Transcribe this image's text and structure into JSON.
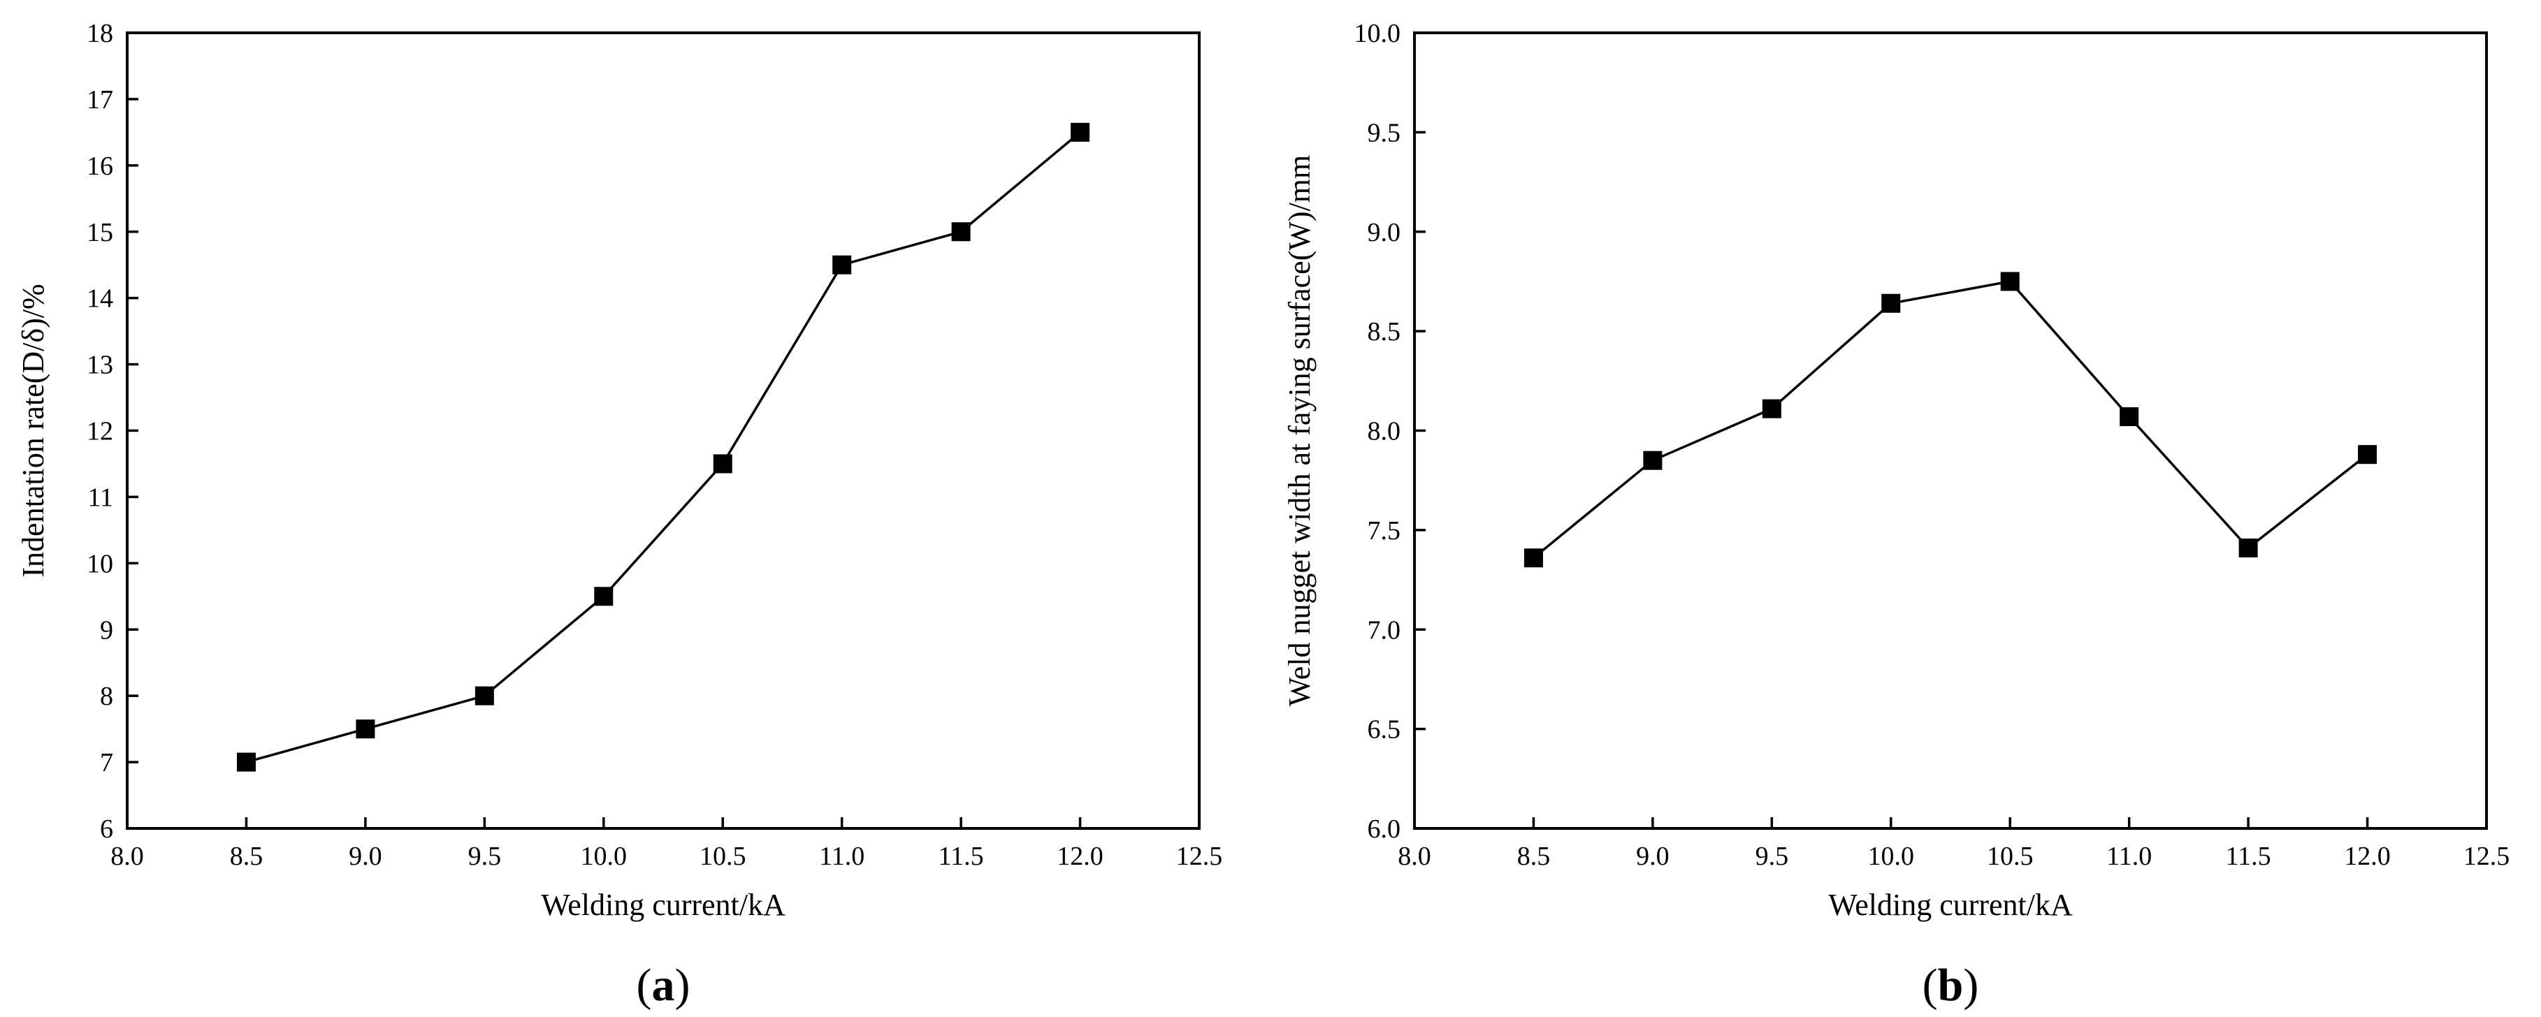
{
  "chart_data": [
    {
      "type": "line",
      "panel_label": "a",
      "xlabel": "Welding current/kA",
      "ylabel": "Indentation rate(D/δ)/%",
      "xlim": [
        8.0,
        12.5
      ],
      "ylim": [
        6,
        18
      ],
      "xticks": [
        "8.0",
        "8.5",
        "9.0",
        "9.5",
        "10.0",
        "10.5",
        "11.0",
        "11.5",
        "12.0",
        "12.5"
      ],
      "yticks": [
        "6",
        "7",
        "8",
        "9",
        "10",
        "11",
        "12",
        "13",
        "14",
        "15",
        "16",
        "17",
        "18"
      ],
      "grid": false,
      "marker": "square",
      "series": [
        {
          "x": [
            8.5,
            9.0,
            9.5,
            10.0,
            10.5,
            11.0,
            11.5,
            12.0
          ],
          "values": [
            7.0,
            7.5,
            8.0,
            9.5,
            11.5,
            14.5,
            15.0,
            16.5
          ]
        }
      ]
    },
    {
      "type": "line",
      "panel_label": "b",
      "xlabel": "Welding current/kA",
      "ylabel": "Weld nugget width at faying surface(W)/mm",
      "xlim": [
        8.0,
        12.5
      ],
      "ylim": [
        6.0,
        10.0
      ],
      "xticks": [
        "8.0",
        "8.5",
        "9.0",
        "9.5",
        "10.0",
        "10.5",
        "11.0",
        "11.5",
        "12.0",
        "12.5"
      ],
      "yticks": [
        "6.0",
        "6.5",
        "7.0",
        "7.5",
        "8.0",
        "8.5",
        "9.0",
        "9.5",
        "10.0"
      ],
      "grid": false,
      "marker": "square",
      "series": [
        {
          "x": [
            8.5,
            9.0,
            9.5,
            10.0,
            10.5,
            11.0,
            11.5,
            12.0
          ],
          "values": [
            7.36,
            7.85,
            8.11,
            8.64,
            8.75,
            8.07,
            7.41,
            7.88
          ]
        }
      ]
    }
  ]
}
